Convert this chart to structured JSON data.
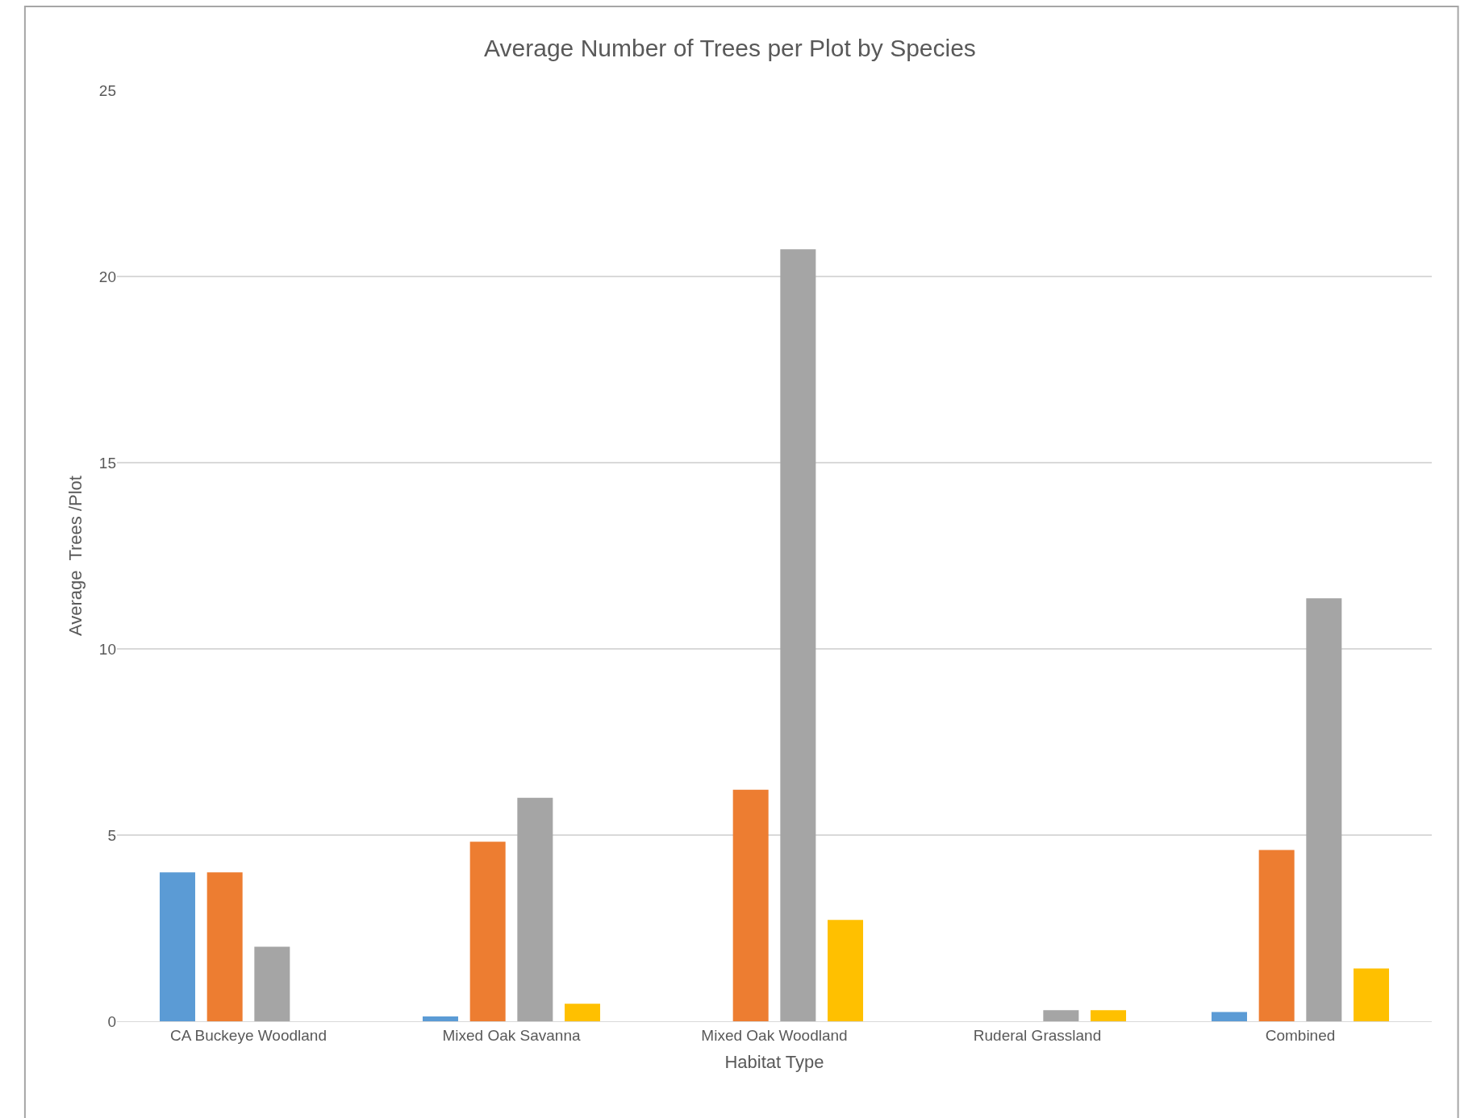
{
  "chart_data": {
    "type": "bar",
    "title": "Average Number of Trees per Plot by Species",
    "xlabel": "Habitat Type",
    "ylabel": "Average  Trees /Plot",
    "categories": [
      "CA Buckeye Woodland",
      "Mixed Oak Savanna",
      "Mixed Oak Woodland",
      "Ruderal Grassland",
      "Combined"
    ],
    "series": [
      {
        "color": "#5b9bd5",
        "values": [
          4,
          0.13,
          0,
          0,
          0.25
        ]
      },
      {
        "color": "#ed7d31",
        "values": [
          4,
          4.82,
          6.22,
          0,
          4.6
        ]
      },
      {
        "color": "#a5a5a5",
        "values": [
          2,
          6,
          20.73,
          0.3,
          11.36
        ]
      },
      {
        "color": "#ffc000",
        "values": [
          0,
          0.47,
          2.72,
          0.3,
          1.42
        ]
      }
    ],
    "ylim": [
      0,
      25
    ],
    "yticks": [
      0,
      5,
      10,
      15,
      20,
      25
    ],
    "grid": "y"
  }
}
